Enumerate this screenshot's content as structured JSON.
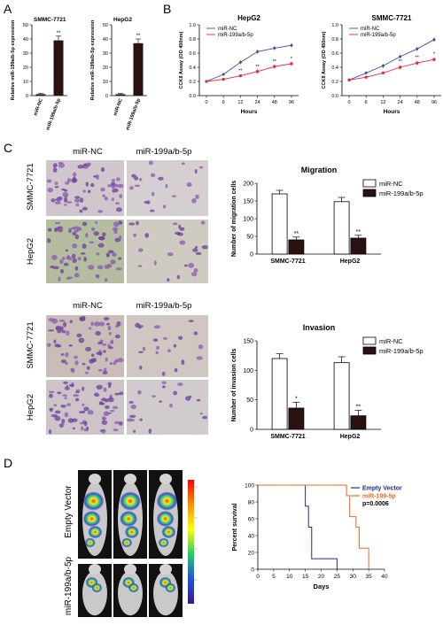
{
  "panel_letters": [
    "A",
    "B",
    "C",
    "D"
  ],
  "colors": {
    "bar_dark": "#2a1210",
    "blue": "#3b4fa8",
    "red": "#e8293a",
    "orange": "#f26522",
    "navy": "#1f2a80"
  },
  "icons": [
    "stained-cell-micrograph",
    "mouse-bioluminescence-image",
    "luminescence-color-scale"
  ],
  "micrographs": {
    "col_nc": "miR-NC",
    "col_199": "miR-199a/b-5p",
    "row_smmc": "SMMC-7721",
    "row_hepg2": "HepG2"
  },
  "mice": {
    "row_empty": "Empty Vector",
    "row_199": "miR-199a/b-5p",
    "per_row": 3
  },
  "chart_data": [
    {
      "id": "a1",
      "type": "bar",
      "title": "SMMC-7721",
      "ylabel": "Relative miR-199a/b-5p expression",
      "categories": [
        "miR-NC",
        "miR-199a/b-5p"
      ],
      "values": [
        1,
        39
      ],
      "errors": [
        0.5,
        3
      ],
      "ylim": [
        0,
        50
      ],
      "yticks": [
        0,
        10,
        20,
        30,
        40,
        50
      ],
      "ytick_labels": [
        "0",
        "10",
        "20",
        "30",
        "40",
        "50"
      ],
      "annotations": [
        "",
        "**"
      ]
    },
    {
      "id": "a2",
      "type": "bar",
      "title": "HepG2",
      "ylabel": "Relative miR-199a/b-5p expression",
      "categories": [
        "miR-NC",
        "miR-199a/b-5p"
      ],
      "values": [
        1,
        37
      ],
      "errors": [
        0.5,
        3
      ],
      "ylim": [
        0,
        50
      ],
      "yticks": [
        0,
        10,
        20,
        30,
        40,
        50
      ],
      "ytick_labels": [
        "0",
        "10",
        "20",
        "30",
        "40",
        "50"
      ],
      "annotations": [
        "",
        "**"
      ]
    },
    {
      "id": "b1",
      "type": "line",
      "title": "HepG2",
      "xlabel": "Hours",
      "ylabel": "CCK8 Assay (OD 450nm)",
      "x": [
        0,
        6,
        12,
        24,
        48,
        96
      ],
      "xtick_labels": [
        "0",
        "6",
        "12",
        "24",
        "48",
        "96"
      ],
      "ylim": [
        0,
        1.0
      ],
      "yticks": [
        0,
        0.2,
        0.4,
        0.6,
        0.8,
        1.0
      ],
      "ytick_labels": [
        "0.0",
        "0.2",
        "0.4",
        "0.6",
        "0.8",
        "1.0"
      ],
      "series": [
        {
          "name": "miR-NC",
          "values": [
            0.2,
            0.3,
            0.47,
            0.62,
            0.67,
            0.71
          ],
          "errors": [
            0.02,
            0.02,
            0.03,
            0.03,
            0.03,
            0.03
          ]
        },
        {
          "name": "miR-199a/b-5p",
          "values": [
            0.2,
            0.23,
            0.28,
            0.34,
            0.41,
            0.45
          ],
          "errors": [
            0.02,
            0.02,
            0.02,
            0.03,
            0.03,
            0.03
          ]
        }
      ],
      "annotations": [
        {
          "x": 12,
          "y": 0.33,
          "text": "**"
        },
        {
          "x": 24,
          "y": 0.39,
          "text": "**"
        },
        {
          "x": 48,
          "y": 0.46,
          "text": "**"
        },
        {
          "x": 96,
          "y": 0.5,
          "text": "*"
        }
      ],
      "legend": "top-left"
    },
    {
      "id": "b2",
      "type": "line",
      "title": "SMMC-7721",
      "xlabel": "Hours",
      "ylabel": "CCK8 Assay (OD 450nm)",
      "x": [
        0,
        6,
        12,
        24,
        48,
        96
      ],
      "xtick_labels": [
        "0",
        "6",
        "12",
        "24",
        "48",
        "96"
      ],
      "ylim": [
        0,
        1.0
      ],
      "yticks": [
        0,
        0.2,
        0.4,
        0.6,
        0.8,
        1.0
      ],
      "ytick_labels": [
        "0.0",
        "0.2",
        "0.4",
        "0.6",
        "0.8",
        "1.0"
      ],
      "series": [
        {
          "name": "miR-NC",
          "values": [
            0.22,
            0.32,
            0.42,
            0.55,
            0.66,
            0.79
          ],
          "errors": [
            0.02,
            0.02,
            0.03,
            0.03,
            0.03,
            0.03
          ]
        },
        {
          "name": "miR-199a/b-5p",
          "values": [
            0.22,
            0.26,
            0.32,
            0.4,
            0.46,
            0.51
          ],
          "errors": [
            0.02,
            0.02,
            0.02,
            0.03,
            0.03,
            0.03
          ]
        }
      ],
      "annotations": [
        {
          "x": 24,
          "y": 0.46,
          "text": "**"
        },
        {
          "x": 48,
          "y": 0.52,
          "text": "**"
        },
        {
          "x": 96,
          "y": 0.57,
          "text": "*"
        }
      ],
      "legend": "top-left"
    },
    {
      "id": "c1",
      "type": "bar",
      "title": "Migration",
      "ylabel": "Number of migration cells",
      "categories": [
        "SMMC-7721",
        "HepG2"
      ],
      "series": [
        {
          "name": "miR-NC",
          "values": [
            170,
            148
          ],
          "errors": [
            10,
            12
          ]
        },
        {
          "name": "miR-199a/b-5p",
          "values": [
            40,
            45
          ],
          "errors": [
            8,
            8
          ]
        }
      ],
      "ylim": [
        0,
        200
      ],
      "yticks": [
        0,
        50,
        100,
        150,
        200
      ],
      "ytick_labels": [
        "0",
        "50",
        "100",
        "150",
        "200"
      ],
      "annotations": [
        "**",
        "**"
      ],
      "legend": "top-right"
    },
    {
      "id": "c2",
      "type": "bar",
      "title": "Invasion",
      "ylabel": "Number of invasion cells",
      "categories": [
        "SMMC-7721",
        "HepG2"
      ],
      "series": [
        {
          "name": "miR-NC",
          "values": [
            120,
            113
          ],
          "errors": [
            8,
            10
          ]
        },
        {
          "name": "miR-199a/b-5p",
          "values": [
            36,
            23
          ],
          "errors": [
            10,
            9
          ]
        }
      ],
      "ylim": [
        0,
        150
      ],
      "yticks": [
        0,
        50,
        100,
        150
      ],
      "ytick_labels": [
        "0",
        "50",
        "100",
        "150"
      ],
      "annotations": [
        "*",
        "**"
      ],
      "legend": "top-right"
    },
    {
      "id": "d",
      "type": "line",
      "subtype": "kaplan-meier",
      "xlabel": "Days",
      "ylabel": "Percent survival",
      "xlim": [
        0,
        40
      ],
      "xticks": [
        0,
        5,
        10,
        15,
        20,
        25,
        30,
        35,
        40
      ],
      "xtick_labels": [
        "0",
        "5",
        "10",
        "15",
        "20",
        "25",
        "30",
        "35",
        "40"
      ],
      "ylim": [
        0,
        100
      ],
      "yticks": [
        0,
        20,
        40,
        60,
        80,
        100
      ],
      "ytick_labels": [
        "0",
        "20",
        "40",
        "60",
        "80",
        "100"
      ],
      "series": [
        {
          "name": "Empty Vector",
          "steps": [
            [
              0,
              100
            ],
            [
              15,
              100
            ],
            [
              15,
              75
            ],
            [
              16,
              75
            ],
            [
              16,
              50
            ],
            [
              17,
              50
            ],
            [
              17,
              12.5
            ],
            [
              25,
              12.5
            ],
            [
              25,
              0
            ]
          ]
        },
        {
          "name": "miR-199-5p",
          "steps": [
            [
              0,
              100
            ],
            [
              28,
              100
            ],
            [
              28,
              87.5
            ],
            [
              29,
              87.5
            ],
            [
              29,
              62.5
            ],
            [
              31,
              62.5
            ],
            [
              31,
              50
            ],
            [
              32,
              50
            ],
            [
              32,
              25
            ],
            [
              35,
              25
            ],
            [
              35,
              0
            ]
          ]
        }
      ],
      "annotation": "p=0.0006",
      "legend": "top-right"
    }
  ]
}
